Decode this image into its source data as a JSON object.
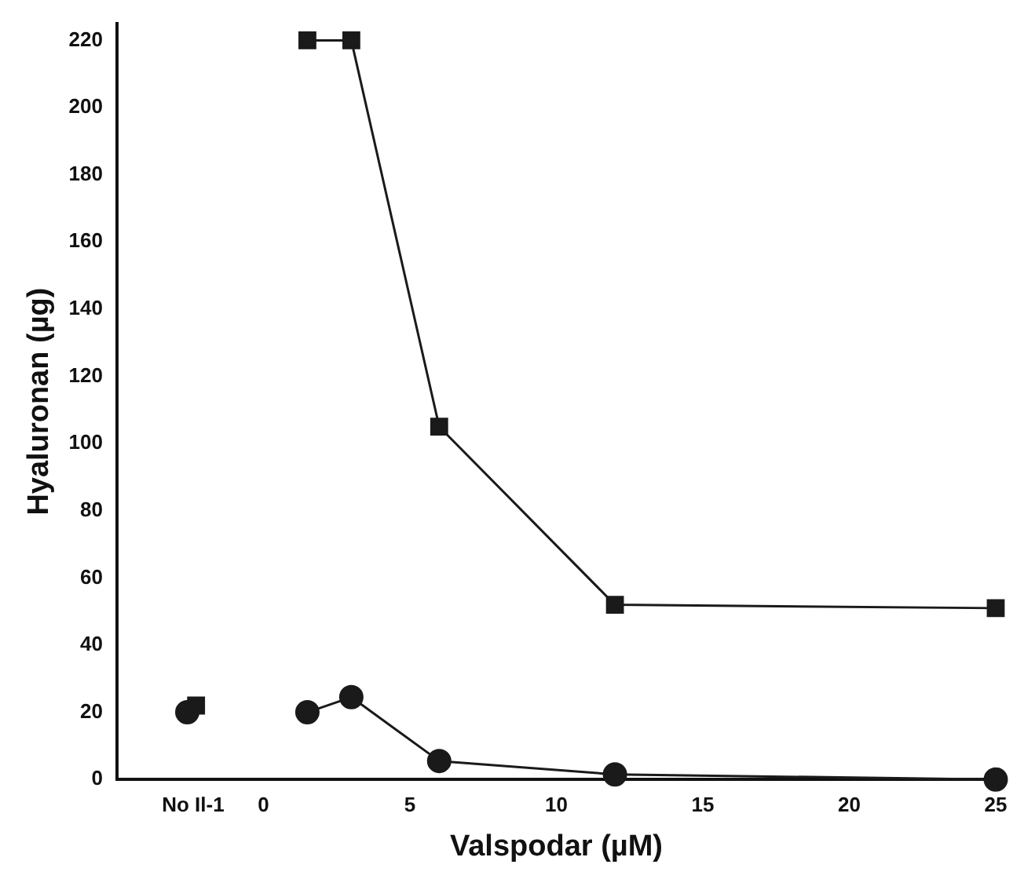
{
  "chart_data": {
    "type": "line",
    "xlabel": "Valspodar (µM)",
    "ylabel": "Hyaluronan (µg)",
    "xlim": [
      -5,
      25
    ],
    "xticks": [
      {
        "value": -2.4,
        "label": "No Il-1"
      },
      0,
      5,
      10,
      15,
      20,
      25
    ],
    "ylim": [
      0,
      225
    ],
    "yticks": [
      0,
      20,
      40,
      60,
      80,
      100,
      120,
      140,
      160,
      180,
      200,
      220
    ],
    "grid": false,
    "legend": false,
    "series": [
      {
        "type": "line",
        "marker": "square",
        "color": "#1a1a1a",
        "x": [
          1.5,
          3,
          6,
          12,
          25
        ],
        "values": [
          220,
          220,
          105,
          52,
          51
        ]
      },
      {
        "type": "line",
        "marker": "circle",
        "color": "#1a1a1a",
        "x": [
          1.5,
          3,
          6,
          12,
          25
        ],
        "values": [
          20,
          24.5,
          5.5,
          1.5,
          0
        ]
      },
      {
        "type": "scatter",
        "marker": "square",
        "color": "#1a1a1a",
        "x": [
          -2.3
        ],
        "values": [
          22
        ]
      },
      {
        "type": "scatter",
        "marker": "circle",
        "color": "#1a1a1a",
        "x": [
          -2.6
        ],
        "values": [
          20
        ]
      }
    ]
  }
}
